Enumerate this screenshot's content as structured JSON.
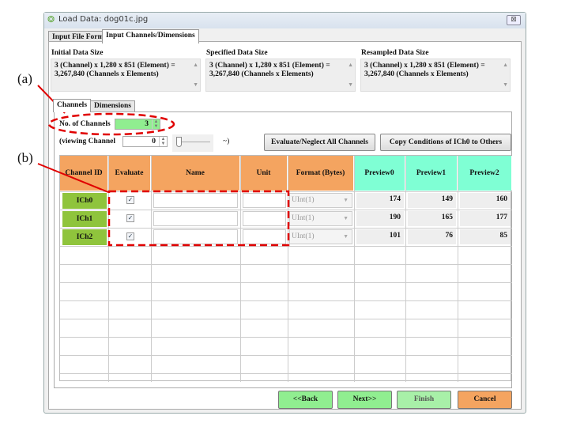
{
  "window": {
    "title": "Load Data: dog01c.jpg",
    "close": "⊠"
  },
  "tabs": [
    {
      "label": "Input File Form"
    },
    {
      "label": "Input Channels/Dimensions",
      "active": true
    }
  ],
  "sizes": [
    {
      "label": "Initial Data Size",
      "line1": "3 (Channel) x 1,280 x 851 (Element) =",
      "line2": "3,267,840 (Channels x Elements)"
    },
    {
      "label": "Specified Data Size",
      "line1": "3 (Channel) x 1,280 x 851 (Element) =",
      "line2": "3,267,840 (Channels x Elements)"
    },
    {
      "label": "Resampled Data Size",
      "line1": "3 (Channel) x 1,280 x 851 (Element) =",
      "line2": "3,267,840 (Channels x Elements)"
    }
  ],
  "subtabs": [
    {
      "label": "Channels",
      "active": true
    },
    {
      "label": "Dimensions"
    }
  ],
  "channels": {
    "label": "No. of Channels",
    "value": "3",
    "viewing_label": "(viewing Channel",
    "viewing_value": "0",
    "slider_value": 0,
    "tilde": "~)"
  },
  "buttons": {
    "evaluate_all": "Evaluate/Neglect All Channels",
    "copy": "Copy Conditions of ICh0 to Others",
    "back": "<<Back",
    "next": "Next>>",
    "finish": "Finish",
    "cancel": "Cancel"
  },
  "table": {
    "headers": [
      "Channel ID",
      "Evaluate",
      "Name",
      "Unit",
      "Format (Bytes)",
      "Preview0",
      "Preview1",
      "Preview2"
    ],
    "rows": [
      {
        "id": "ICh0",
        "evaluate": true,
        "name": "",
        "unit": "",
        "format": "UInt(1)",
        "p0": "174",
        "p1": "149",
        "p2": "160"
      },
      {
        "id": "ICh1",
        "evaluate": true,
        "name": "",
        "unit": "",
        "format": "UInt(1)",
        "p0": "190",
        "p1": "165",
        "p2": "177"
      },
      {
        "id": "ICh2",
        "evaluate": true,
        "name": "",
        "unit": "",
        "format": "UInt(1)",
        "p0": "101",
        "p1": "76",
        "p2": "85"
      }
    ]
  },
  "annotations": {
    "a": "(a)",
    "b": "(b)",
    "color": "#e00000"
  },
  "colors": {
    "header_orange": "#f4a460",
    "header_cyan": "#7fffd4",
    "channel_green": "#8fc43c",
    "spin_green": "#90ee90"
  }
}
